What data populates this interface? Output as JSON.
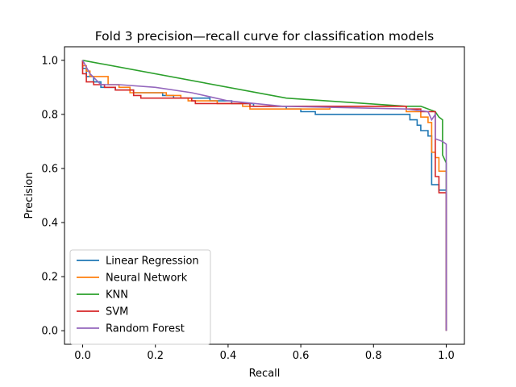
{
  "chart_data": {
    "type": "line",
    "title": "Fold 3 precision—recall curve for classification models",
    "xlabel": "Recall",
    "ylabel": "Precision",
    "xlim": [
      -0.05,
      1.05
    ],
    "ylim": [
      -0.05,
      1.05
    ],
    "xticks": [
      "0.0",
      "0.2",
      "0.4",
      "0.6",
      "0.8",
      "1.0"
    ],
    "yticks": [
      "0.0",
      "0.2",
      "0.4",
      "0.6",
      "0.8",
      "1.0"
    ],
    "grid": false,
    "legend_position": "lower-left",
    "series": [
      {
        "name": "Linear Regression",
        "color": "#1f77b4",
        "points": [
          [
            0.0,
            1.0
          ],
          [
            0.0,
            0.97
          ],
          [
            0.01,
            0.97
          ],
          [
            0.01,
            0.94
          ],
          [
            0.03,
            0.94
          ],
          [
            0.03,
            0.92
          ],
          [
            0.05,
            0.92
          ],
          [
            0.05,
            0.9
          ],
          [
            0.09,
            0.9
          ],
          [
            0.09,
            0.89
          ],
          [
            0.14,
            0.89
          ],
          [
            0.14,
            0.88
          ],
          [
            0.22,
            0.88
          ],
          [
            0.22,
            0.87
          ],
          [
            0.25,
            0.87
          ],
          [
            0.25,
            0.86
          ],
          [
            0.35,
            0.86
          ],
          [
            0.35,
            0.85
          ],
          [
            0.41,
            0.85
          ],
          [
            0.41,
            0.84
          ],
          [
            0.47,
            0.84
          ],
          [
            0.47,
            0.83
          ],
          [
            0.56,
            0.83
          ],
          [
            0.56,
            0.82
          ],
          [
            0.6,
            0.82
          ],
          [
            0.6,
            0.81
          ],
          [
            0.64,
            0.81
          ],
          [
            0.64,
            0.8
          ],
          [
            0.9,
            0.8
          ],
          [
            0.9,
            0.78
          ],
          [
            0.92,
            0.78
          ],
          [
            0.92,
            0.76
          ],
          [
            0.93,
            0.76
          ],
          [
            0.93,
            0.74
          ],
          [
            0.95,
            0.74
          ],
          [
            0.95,
            0.72
          ],
          [
            0.96,
            0.72
          ],
          [
            0.96,
            0.54
          ],
          [
            0.98,
            0.54
          ],
          [
            0.98,
            0.52
          ],
          [
            1.0,
            0.52
          ],
          [
            1.0,
            0.0
          ]
        ]
      },
      {
        "name": "Neural Network",
        "color": "#ff7f0e",
        "points": [
          [
            0.0,
            1.0
          ],
          [
            0.0,
            0.98
          ],
          [
            0.01,
            0.98
          ],
          [
            0.01,
            0.96
          ],
          [
            0.02,
            0.96
          ],
          [
            0.02,
            0.94
          ],
          [
            0.07,
            0.94
          ],
          [
            0.07,
            0.91
          ],
          [
            0.1,
            0.91
          ],
          [
            0.1,
            0.9
          ],
          [
            0.13,
            0.9
          ],
          [
            0.13,
            0.88
          ],
          [
            0.23,
            0.88
          ],
          [
            0.23,
            0.87
          ],
          [
            0.27,
            0.87
          ],
          [
            0.27,
            0.86
          ],
          [
            0.29,
            0.86
          ],
          [
            0.29,
            0.85
          ],
          [
            0.37,
            0.85
          ],
          [
            0.37,
            0.84
          ],
          [
            0.44,
            0.84
          ],
          [
            0.44,
            0.83
          ],
          [
            0.46,
            0.83
          ],
          [
            0.46,
            0.82
          ],
          [
            0.68,
            0.82
          ],
          [
            0.68,
            0.83
          ],
          [
            0.89,
            0.83
          ],
          [
            0.89,
            0.81
          ],
          [
            0.93,
            0.81
          ],
          [
            0.93,
            0.79
          ],
          [
            0.95,
            0.79
          ],
          [
            0.95,
            0.77
          ],
          [
            0.96,
            0.77
          ],
          [
            0.96,
            0.66
          ],
          [
            0.97,
            0.66
          ],
          [
            0.97,
            0.64
          ],
          [
            0.98,
            0.64
          ],
          [
            0.98,
            0.59
          ],
          [
            1.0,
            0.59
          ],
          [
            1.0,
            0.0
          ]
        ]
      },
      {
        "name": "KNN",
        "color": "#2ca02c",
        "points": [
          [
            0.0,
            1.0
          ],
          [
            0.56,
            0.86
          ],
          [
            0.89,
            0.83
          ],
          [
            0.93,
            0.83
          ],
          [
            0.97,
            0.81
          ],
          [
            0.98,
            0.79
          ],
          [
            0.99,
            0.78
          ],
          [
            0.99,
            0.65
          ],
          [
            1.0,
            0.62
          ],
          [
            1.0,
            0.0
          ]
        ]
      },
      {
        "name": "SVM",
        "color": "#d62728",
        "points": [
          [
            0.0,
            1.0
          ],
          [
            0.0,
            0.95
          ],
          [
            0.01,
            0.95
          ],
          [
            0.01,
            0.92
          ],
          [
            0.03,
            0.92
          ],
          [
            0.03,
            0.91
          ],
          [
            0.06,
            0.91
          ],
          [
            0.06,
            0.9
          ],
          [
            0.09,
            0.9
          ],
          [
            0.09,
            0.89
          ],
          [
            0.14,
            0.89
          ],
          [
            0.14,
            0.87
          ],
          [
            0.16,
            0.87
          ],
          [
            0.16,
            0.86
          ],
          [
            0.3,
            0.86
          ],
          [
            0.3,
            0.85
          ],
          [
            0.31,
            0.85
          ],
          [
            0.31,
            0.84
          ],
          [
            0.46,
            0.84
          ],
          [
            0.46,
            0.83
          ],
          [
            0.89,
            0.83
          ],
          [
            0.89,
            0.82
          ],
          [
            0.93,
            0.82
          ],
          [
            0.93,
            0.81
          ],
          [
            0.97,
            0.81
          ],
          [
            0.97,
            0.57
          ],
          [
            0.98,
            0.57
          ],
          [
            0.98,
            0.51
          ],
          [
            1.0,
            0.51
          ],
          [
            1.0,
            0.0
          ]
        ]
      },
      {
        "name": "Random Forest",
        "color": "#9467bd",
        "points": [
          [
            0.0,
            1.0
          ],
          [
            0.02,
            0.95
          ],
          [
            0.05,
            0.91
          ],
          [
            0.1,
            0.91
          ],
          [
            0.2,
            0.9
          ],
          [
            0.3,
            0.88
          ],
          [
            0.4,
            0.85
          ],
          [
            0.55,
            0.83
          ],
          [
            0.89,
            0.82
          ],
          [
            0.95,
            0.81
          ],
          [
            0.96,
            0.78
          ],
          [
            0.97,
            0.8
          ],
          [
            0.97,
            0.71
          ],
          [
            0.99,
            0.7
          ],
          [
            1.0,
            0.69
          ],
          [
            1.0,
            0.0
          ]
        ]
      }
    ]
  }
}
